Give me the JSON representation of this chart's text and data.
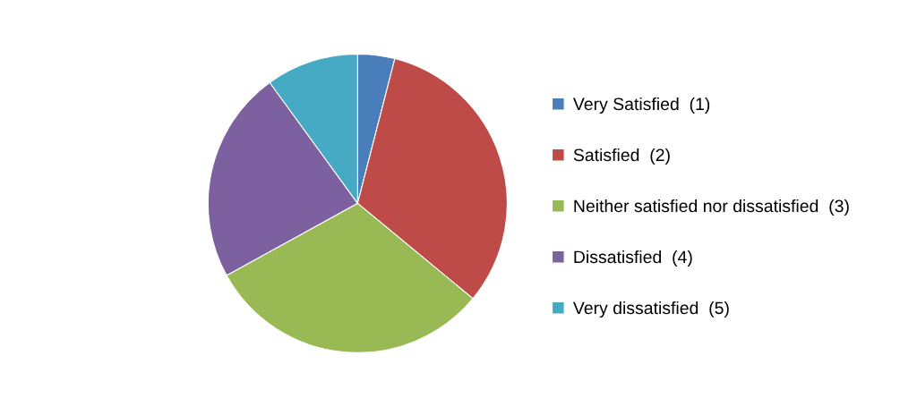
{
  "chart_data": {
    "type": "pie",
    "categories": [
      "Very Satisfied  (1)",
      "Satisfied  (2)",
      "Neither satisfied nor dissatisfied  (3)",
      "Dissatisfied  (4)",
      "Very dissatisfied  (5)"
    ],
    "values": [
      4,
      32,
      31,
      23,
      10
    ],
    "colors": [
      "#4a7ebb",
      "#be4b48",
      "#98b954",
      "#7d60a0",
      "#46aac5"
    ],
    "legend": "right"
  }
}
